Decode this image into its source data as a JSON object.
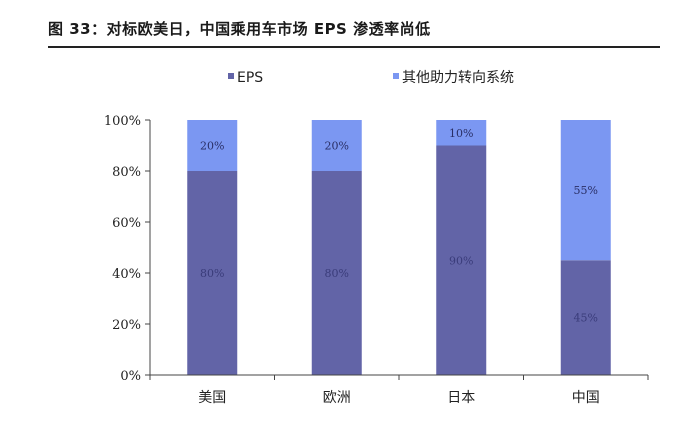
{
  "figure_title": "图 33：对标欧美日，中国乘用车市场 EPS 渗透率尚低",
  "chart_data": {
    "type": "bar",
    "stacked": true,
    "categories": [
      "美国",
      "欧洲",
      "日本",
      "中国"
    ],
    "series": [
      {
        "name": "EPS",
        "values": [
          80,
          80,
          90,
          45
        ],
        "color": "#6264a7",
        "label_color": "#3a3c7a"
      },
      {
        "name": "其他助力转向系统",
        "values": [
          20,
          20,
          10,
          55
        ],
        "color": "#7b97f2",
        "label_color": "#2a2f66"
      }
    ],
    "ylim": [
      0,
      100
    ],
    "yticks": [
      "0%",
      "20%",
      "40%",
      "60%",
      "80%",
      "100%"
    ],
    "value_suffix": "%",
    "legend_position": "top",
    "grid": false
  }
}
